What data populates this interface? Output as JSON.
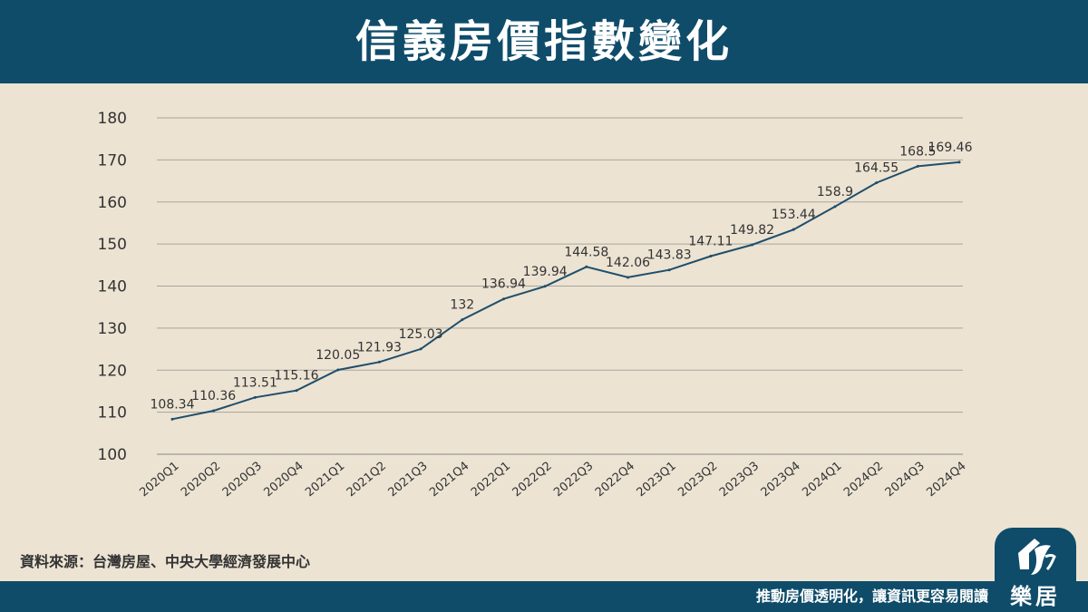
{
  "header": {
    "title": "信義房價指數變化"
  },
  "chart_data": {
    "type": "line",
    "title": "信義房價指數變化",
    "xlabel": "",
    "ylabel": "",
    "ylim": [
      100,
      180
    ],
    "yticks": [
      "100",
      "110",
      "120",
      "130",
      "140",
      "150",
      "160",
      "170",
      "180"
    ],
    "grid": true,
    "categories": [
      "2020Q1",
      "2020Q2",
      "2020Q3",
      "2020Q4",
      "2021Q1",
      "2021Q2",
      "2021Q3",
      "2021Q4",
      "2022Q1",
      "2022Q2",
      "2022Q3",
      "2022Q4",
      "2023Q1",
      "2023Q2",
      "2023Q3",
      "2023Q4",
      "2024Q1",
      "2024Q2",
      "2024Q3",
      "2024Q4"
    ],
    "values": [
      108.34,
      110.36,
      113.51,
      115.16,
      120.05,
      121.93,
      125.03,
      132,
      136.94,
      139.94,
      144.58,
      142.06,
      143.83,
      147.11,
      149.82,
      153.44,
      158.9,
      164.55,
      168.5,
      169.46
    ],
    "labels": [
      "108.34",
      "110.36",
      "113.51",
      "115.16",
      "120.05",
      "121.93",
      "125.03",
      "132",
      "136.94",
      "139.94",
      "144.58",
      "142.06",
      "143.83",
      "147.11",
      "149.82",
      "153.44",
      "158.9",
      "164.55",
      "168.5",
      "169.46"
    ],
    "line_color": "#1f4e6b"
  },
  "source": {
    "text": "資料來源：台灣房屋、中央大學經濟發展中心"
  },
  "footer": {
    "slogan": "推動房價透明化，讓資訊更容易閱讀"
  },
  "logo": {
    "text": "樂居"
  }
}
